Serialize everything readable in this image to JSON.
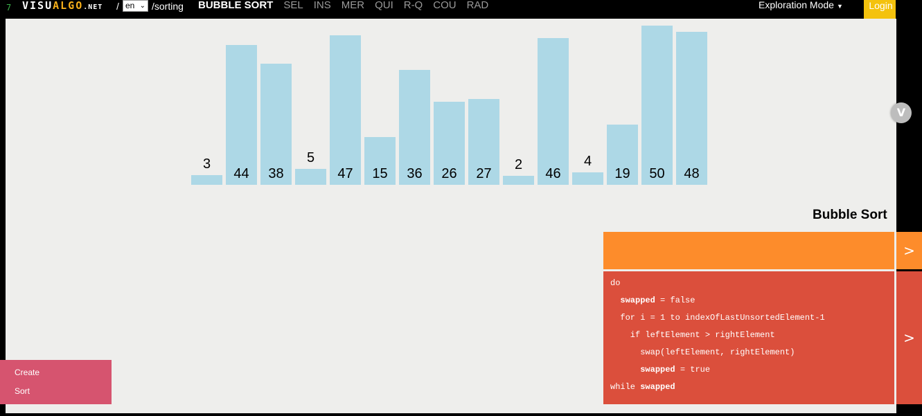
{
  "topbar": {
    "version_mark": "7",
    "logo": {
      "a": "VISU",
      "b": "ALGO",
      "c": ".NET"
    },
    "slash": "/",
    "language": "en",
    "path": "/sorting",
    "nav": [
      {
        "label": "BUBBLE SORT",
        "active": true
      },
      {
        "label": "SEL"
      },
      {
        "label": "INS"
      },
      {
        "label": "MER"
      },
      {
        "label": "QUI"
      },
      {
        "label": "R-Q"
      },
      {
        "label": "COU"
      },
      {
        "label": "RAD"
      }
    ],
    "mode": "Exploration Mode",
    "login": "Login"
  },
  "array": [
    3,
    44,
    38,
    5,
    47,
    15,
    36,
    26,
    27,
    2,
    46,
    4,
    19,
    50,
    48
  ],
  "algorithm_title": "Bubble Sort",
  "pseudocode": [
    {
      "pre": "do",
      "bold": "",
      "post": ""
    },
    {
      "pre": "  ",
      "bold": "swapped",
      "post": " = false"
    },
    {
      "pre": "  for i = 1 to indexOfLastUnsortedElement-1",
      "bold": "",
      "post": ""
    },
    {
      "pre": "    if leftElement > rightElement",
      "bold": "",
      "post": ""
    },
    {
      "pre": "      swap(leftElement, rightElement)",
      "bold": "",
      "post": ""
    },
    {
      "pre": "      ",
      "bold": "swapped",
      "post": " = true"
    },
    {
      "pre": "while ",
      "bold": "swapped",
      "post": ""
    }
  ],
  "actions": [
    "Create",
    "Sort"
  ],
  "arrow_glyph": ">",
  "colors": {
    "bar": "#add8e6",
    "status": "#fd8c2b",
    "code": "#db4f3c",
    "actions": "#d6546f",
    "login": "#f4c20d"
  }
}
